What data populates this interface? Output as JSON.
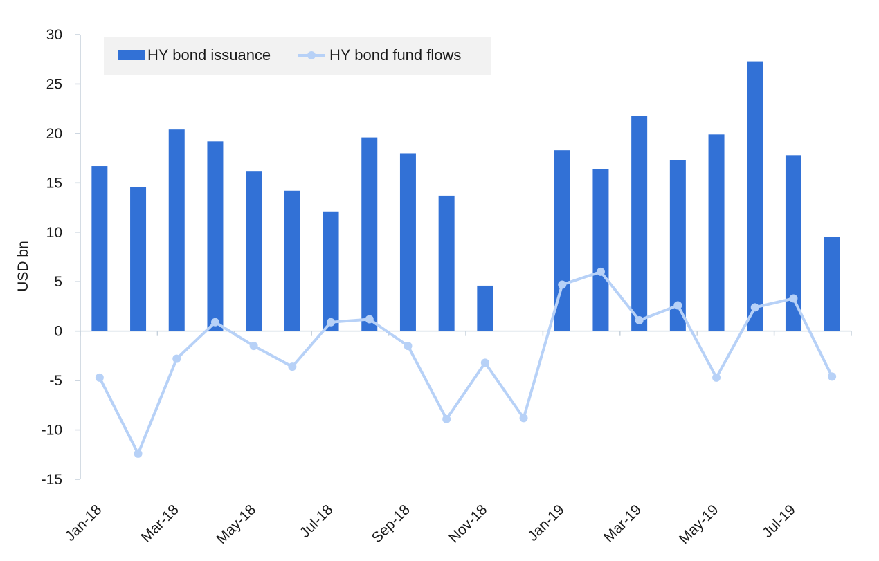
{
  "chart_data": {
    "type": "bar",
    "ylabel": "USD bn",
    "ylim": [
      -15,
      30
    ],
    "yticks": [
      30,
      25,
      20,
      15,
      10,
      5,
      0,
      -5,
      -10,
      -15
    ],
    "categories": [
      "Jan-18",
      "Feb-18",
      "Mar-18",
      "Apr-18",
      "May-18",
      "Jun-18",
      "Jul-18",
      "Aug-18",
      "Sep-18",
      "Oct-18",
      "Nov-18",
      "Dec-18",
      "Jan-19",
      "Feb-19",
      "Mar-19",
      "Apr-19",
      "May-19",
      "Jun-19",
      "Jul-19",
      "Aug-19"
    ],
    "xtick_labels": [
      "Jan-18",
      "Mar-18",
      "May-18",
      "Jul-18",
      "Sep-18",
      "Nov-18",
      "Jan-19",
      "Mar-19",
      "May-19",
      "Jul-19"
    ],
    "series": [
      {
        "name": "HY bond issuance",
        "type": "bar",
        "color": "#3271d6",
        "values": [
          16.7,
          14.6,
          20.4,
          19.2,
          16.2,
          14.2,
          12.1,
          19.6,
          18.0,
          13.7,
          4.6,
          0,
          18.3,
          16.4,
          21.8,
          17.3,
          19.9,
          27.3,
          17.8,
          9.5
        ]
      },
      {
        "name": "HY bond fund flows",
        "type": "line",
        "color": "#b7d1f7",
        "values": [
          -4.7,
          -12.4,
          -2.8,
          0.9,
          -1.5,
          -3.6,
          0.9,
          1.2,
          -1.5,
          -8.9,
          -3.2,
          -8.8,
          4.7,
          6.0,
          1.1,
          2.6,
          -4.7,
          2.4,
          3.3,
          -4.6
        ]
      }
    ],
    "grid": false,
    "legend": "top-left"
  }
}
